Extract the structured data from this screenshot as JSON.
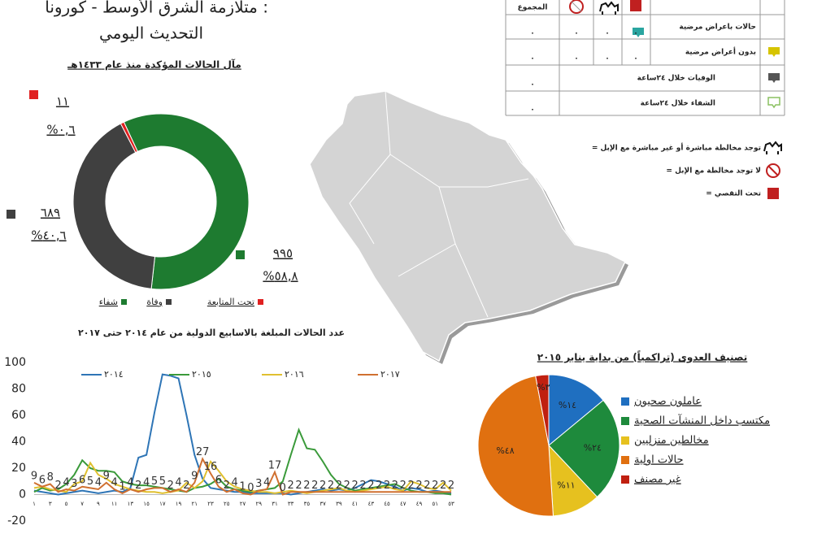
{
  "header": {
    "title": "متلازمة الشرق الأوسط - كورونا :",
    "subtitle": "التحديث اليومي"
  },
  "table": {
    "header": [
      "المجموع"
    ],
    "rows": [
      {
        "label": "حالات باعراض مرضية",
        "cells": [
          "٠",
          "٠",
          "٠",
          "٠"
        ]
      },
      {
        "label": "بدون أعراض مرضية",
        "cells": [
          "٠",
          "٠",
          "٠",
          "٠"
        ]
      },
      {
        "label": "الوفيات خلال ٢٤ساعة",
        "cells": [
          "٠"
        ]
      },
      {
        "label": "الشفاء خلال ٢٤ساعة",
        "cells": [
          "٠"
        ]
      }
    ]
  },
  "legend": [
    "= توجد مخالطة مباشرة أو غير مباشرة مع الإبل",
    "= لا توجد مخالطة مع الإبل",
    "= تحت التقصي"
  ],
  "chart_data": [
    {
      "type": "donut",
      "title": "مآل الحالات المؤكدة منذ عام ١٤٣٣هـ",
      "categories": [
        "شفاء",
        "وفاة",
        "تحت المتابعة"
      ],
      "values": [
        995,
        689,
        11
      ],
      "value_labels": [
        "٩٩٥",
        "٦٨٩",
        "١١"
      ],
      "percents": [
        58.8,
        40.6,
        0.6
      ],
      "percent_labels": [
        "%٥٨,٨",
        "%٤٠,٦",
        "%٠,٦"
      ],
      "colors": [
        "#1e7b30",
        "#404040",
        "#e02020"
      ]
    },
    {
      "type": "line",
      "title": "عدد الحالات المبلغة بالاسابيع الدولية من عام ٢٠١٤ حتى ٢٠١٧",
      "categories": [
        "١",
        null,
        "٣",
        null,
        "٥",
        null,
        "٧",
        null,
        "٩",
        null,
        "١١",
        null,
        "١٣",
        null,
        "١٥",
        null,
        "١٧",
        null,
        "١٩",
        null,
        "٢١",
        null,
        "٢٣",
        null,
        "٢٥",
        null,
        "٢٧",
        null,
        "٢٩",
        null,
        "٣١",
        null,
        "٣٣",
        null,
        "٣٥",
        null,
        "٣٧",
        null,
        "٣٩",
        null,
        "٤١",
        null,
        "٤٣",
        null,
        "٤٥",
        null,
        "٤٧",
        null,
        "٤٩",
        null,
        "٥١",
        null,
        "٥٣"
      ],
      "ylim": [
        -20,
        100
      ],
      "yticks": [
        -20,
        0,
        20,
        40,
        60,
        80,
        100
      ],
      "grid": false,
      "series": [
        {
          "name": "٢٠١٤",
          "color": "#2e75b6",
          "values": [
            3,
            2,
            1,
            0,
            1,
            2,
            3,
            2,
            1,
            2,
            3,
            2,
            5,
            28,
            30,
            62,
            91,
            90,
            88,
            60,
            30,
            12,
            5,
            4,
            3,
            2,
            2,
            1,
            1,
            1,
            1,
            1,
            0,
            1,
            2,
            3,
            4,
            3,
            4,
            3,
            5,
            8,
            11,
            10,
            8,
            6,
            3,
            5,
            4,
            2,
            3,
            2,
            1
          ]
        },
        {
          "name": "٢٠١٥",
          "color": "#3a9a3a",
          "values": [
            2,
            5,
            3,
            4,
            8,
            15,
            26,
            20,
            18,
            18,
            17,
            10,
            8,
            7,
            7,
            6,
            5,
            4,
            3,
            2,
            5,
            6,
            8,
            12,
            6,
            4,
            3,
            2,
            3,
            4,
            5,
            10,
            30,
            49,
            35,
            34,
            25,
            15,
            8,
            5,
            3,
            4,
            5,
            6,
            7,
            8,
            5,
            3,
            2,
            2,
            1,
            1,
            0
          ]
        },
        {
          "name": "٢٠١٦",
          "color": "#e0c030",
          "values": [
            5,
            6,
            4,
            3,
            2,
            8,
            10,
            24,
            15,
            12,
            8,
            6,
            4,
            3,
            2,
            2,
            1,
            2,
            3,
            9,
            5,
            10,
            25,
            18,
            10,
            6,
            4,
            3,
            2,
            2,
            1,
            2,
            3,
            2,
            1,
            2,
            3,
            4,
            5,
            3,
            2,
            3,
            4,
            5,
            6,
            4,
            3,
            10,
            8,
            5,
            4,
            9,
            3
          ]
        },
        {
          "name": "٢٠١٧",
          "color": "#d07030",
          "data_labels": true,
          "values": [
            9,
            6,
            8,
            2,
            4,
            3,
            6,
            5,
            4,
            9,
            4,
            1,
            4,
            2,
            4,
            5,
            5,
            2,
            4,
            2,
            9,
            27,
            16,
            6,
            2,
            4,
            1,
            0,
            3,
            4,
            17,
            0,
            2,
            2,
            2,
            2,
            2,
            2,
            2,
            2,
            2,
            2,
            2,
            2,
            2,
            2,
            2,
            2,
            2,
            2,
            2,
            2,
            2
          ]
        }
      ]
    },
    {
      "type": "pie",
      "title": "تصنيف العدوى (تراكمياً) من بداية يناير ٢٠١٥",
      "categories": [
        "عاملون صحيون",
        "مكتسب داخل المنشآت الصحية",
        "مخالطين منزليين",
        "حالات اولية",
        "غير مصنف"
      ],
      "values": [
        14,
        24,
        11,
        48,
        3
      ],
      "value_labels": [
        "%١٤",
        "%٢٤",
        "%١١",
        "%٤٨",
        "%٣"
      ],
      "colors": [
        "#1f6fc0",
        "#1e8a3c",
        "#e6c11f",
        "#e07010",
        "#c02010"
      ]
    }
  ]
}
